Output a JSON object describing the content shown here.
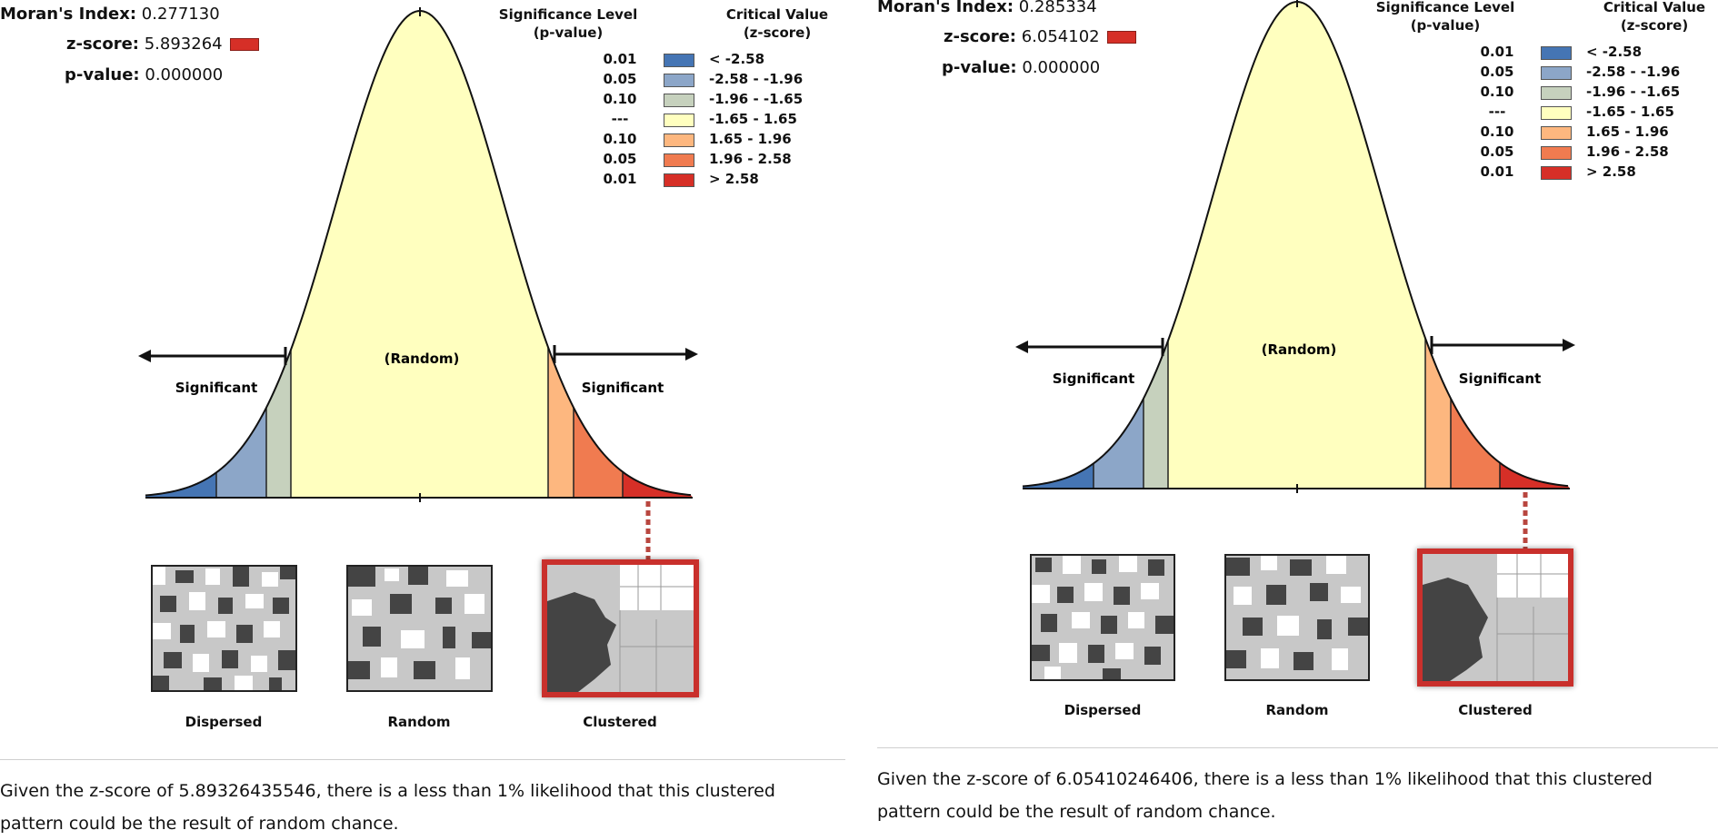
{
  "reports": [
    {
      "morans_index_label": "Moran's Index:",
      "morans_index_value": "0.277130",
      "z_score_label": "z-score:",
      "z_score_value": "5.893264",
      "p_value_label": "p-value:",
      "p_value_value": "0.000000",
      "summary": "Given the z-score of 5.89326435546, there is a less than 1% likelihood that this clustered pattern could be the result of random chance."
    },
    {
      "morans_index_label": "Moran's Index:",
      "morans_index_value": "0.285334",
      "z_score_label": "z-score:",
      "z_score_value": "6.054102",
      "p_value_label": "p-value:",
      "p_value_value": "0.000000",
      "summary": "Given the z-score of 6.05410246406, there is a less than 1% likelihood that this clustered pattern could be the result of random chance."
    }
  ],
  "legend": {
    "sig_header_1": "Significance Level",
    "sig_header_2": "(p-value)",
    "crit_header_1": "Critical Value",
    "crit_header_2": "(z-score)",
    "rows": [
      {
        "p": "0.01",
        "z": "< -2.58",
        "color": "#4575b4"
      },
      {
        "p": "0.05",
        "z": "-2.58 - -1.96",
        "color": "#8ca6c8"
      },
      {
        "p": "0.10",
        "z": "-1.96 - -1.65",
        "color": "#c6d1bd"
      },
      {
        "p": "---",
        "z": "-1.65 - 1.65",
        "color": "#ffffbf"
      },
      {
        "p": "0.10",
        "z": "1.65 - 1.96",
        "color": "#fdb77f"
      },
      {
        "p": "0.05",
        "z": "1.96 - 2.58",
        "color": "#f07b50"
      },
      {
        "p": "0.01",
        "z": "> 2.58",
        "color": "#d62f27"
      }
    ]
  },
  "curve_labels": {
    "random": "(Random)",
    "significant_left": "Significant",
    "significant_right": "Significant"
  },
  "patterns": {
    "dispersed": "Dispersed",
    "random": "Random",
    "clustered": "Clustered"
  }
}
